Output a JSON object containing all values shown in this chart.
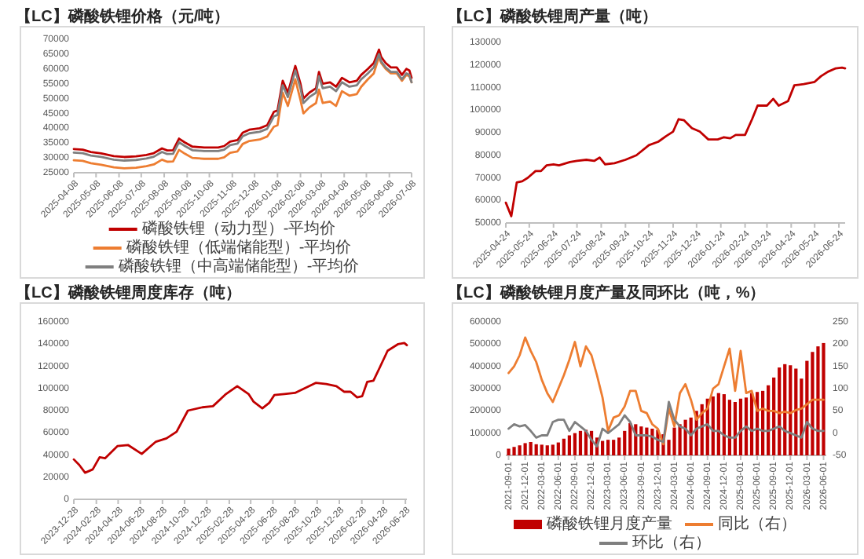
{
  "chart_data": [
    {
      "type": "line",
      "title": "【LC】磷酸铁锂价格（元/吨）",
      "legend": "bottom",
      "x": [
        "2025-04-08",
        "2025-04-20",
        "2025-05-01",
        "2025-05-15",
        "2025-06-01",
        "2025-06-15",
        "2025-07-01",
        "2025-07-15",
        "2025-07-25",
        "2025-08-05",
        "2025-08-12",
        "2025-08-20",
        "2025-08-28",
        "2025-09-05",
        "2025-09-15",
        "2025-10-01",
        "2025-10-20",
        "2025-10-28",
        "2025-11-05",
        "2025-11-15",
        "2025-11-22",
        "2025-12-01",
        "2025-12-15",
        "2025-12-25",
        "2026-01-03",
        "2026-01-08",
        "2026-01-15",
        "2026-01-22",
        "2026-02-01",
        "2026-02-08",
        "2026-02-12",
        "2026-02-20",
        "2026-03-01",
        "2026-03-05",
        "2026-03-10",
        "2026-03-20",
        "2026-03-28",
        "2026-04-05",
        "2026-04-15",
        "2026-04-25",
        "2026-05-01",
        "2026-05-10",
        "2026-05-18",
        "2026-05-25",
        "2026-05-28",
        "2026-06-03",
        "2026-06-10",
        "2026-06-18",
        "2026-06-25",
        "2026-07-01",
        "2026-07-05",
        "2026-07-08"
      ],
      "series": [
        {
          "name": "磷酸铁锂（动力型）-平均价",
          "color": "#c00000",
          "values": [
            33000,
            32800,
            32000,
            31500,
            30600,
            30300,
            30500,
            31000,
            31600,
            33200,
            32500,
            32600,
            36500,
            35200,
            33800,
            33500,
            33500,
            34000,
            35500,
            36000,
            38500,
            39500,
            40000,
            41000,
            45500,
            46000,
            56000,
            52000,
            61000,
            55000,
            50000,
            52000,
            53500,
            59000,
            55000,
            55500,
            54000,
            57000,
            55500,
            56000,
            58000,
            60000,
            62000,
            66500,
            64000,
            62000,
            60500,
            60500,
            58000,
            60000,
            59500,
            57000
          ]
        },
        {
          "name": "磷酸铁锂（低端储能型）-平均价",
          "color": "#ed7d31",
          "values": [
            29200,
            29000,
            28200,
            27700,
            26800,
            26500,
            26700,
            27200,
            27800,
            29400,
            28700,
            28800,
            32700,
            31400,
            30000,
            29700,
            29700,
            30200,
            31700,
            32200,
            34700,
            35700,
            36200,
            37200,
            40500,
            41000,
            52000,
            47500,
            56500,
            49500,
            45000,
            47000,
            48500,
            53000,
            48500,
            49000,
            47500,
            52500,
            51000,
            51500,
            54000,
            56500,
            58500,
            64000,
            62000,
            60000,
            58500,
            58500,
            56000,
            58000,
            57500,
            55500
          ]
        },
        {
          "name": "磷酸铁锂（中高端储能型）-平均价",
          "color": "#7f7f7f",
          "values": [
            31800,
            31600,
            30800,
            30300,
            29400,
            29100,
            29300,
            29800,
            30400,
            32000,
            31300,
            31400,
            35300,
            34000,
            32600,
            32300,
            32300,
            32800,
            34300,
            34800,
            37300,
            38300,
            38800,
            39800,
            44000,
            44500,
            54500,
            50500,
            59500,
            53500,
            48500,
            50500,
            52000,
            57500,
            53500,
            54000,
            52500,
            55500,
            54000,
            54500,
            56500,
            58500,
            60500,
            65000,
            62500,
            60500,
            59000,
            59000,
            56500,
            58500,
            58000,
            55500
          ]
        }
      ],
      "xlim": [
        "2025-04-08",
        "2026-07-08"
      ],
      "xticks": [
        "2025-04-08",
        "2025-05-08",
        "2025-06-08",
        "2025-07-08",
        "2025-08-08",
        "2025-09-08",
        "2025-10-08",
        "2025-11-08",
        "2025-12-08",
        "2026-01-08",
        "2026-02-08",
        "2026-03-08",
        "2026-04-08",
        "2026-05-08",
        "2026-06-08",
        "2026-07-08"
      ],
      "ylim": [
        25000,
        70000
      ],
      "yticks": [
        25000,
        30000,
        35000,
        40000,
        45000,
        50000,
        55000,
        60000,
        65000,
        70000
      ]
    },
    {
      "type": "line",
      "title": "【LC】磷酸铁锂周产量（吨）",
      "x": [
        "2025-04-24",
        "2025-05-01",
        "2025-05-08",
        "2025-05-15",
        "2025-05-22",
        "2025-06-01",
        "2025-06-08",
        "2025-06-15",
        "2025-06-24",
        "2025-07-01",
        "2025-07-15",
        "2025-07-24",
        "2025-08-05",
        "2025-08-15",
        "2025-08-22",
        "2025-08-29",
        "2025-09-10",
        "2025-09-24",
        "2025-10-08",
        "2025-10-24",
        "2025-11-05",
        "2025-11-15",
        "2025-11-24",
        "2025-12-01",
        "2025-12-08",
        "2025-12-18",
        "2025-12-28",
        "2026-01-08",
        "2026-01-20",
        "2026-01-28",
        "2026-02-05",
        "2026-02-12",
        "2026-02-24",
        "2026-03-05",
        "2026-03-12",
        "2026-03-24",
        "2026-04-01",
        "2026-04-08",
        "2026-04-20",
        "2026-04-28",
        "2026-05-10",
        "2026-05-24",
        "2026-06-01",
        "2026-06-10",
        "2026-06-20",
        "2026-06-28",
        "2026-07-02"
      ],
      "series": [
        {
          "color": "#c00000",
          "values": [
            59000,
            53000,
            68000,
            68500,
            70000,
            73000,
            73000,
            75500,
            76000,
            75500,
            77000,
            77500,
            78000,
            77500,
            79000,
            76000,
            76500,
            78000,
            80000,
            84500,
            86000,
            88500,
            90500,
            96000,
            95500,
            92000,
            90500,
            87000,
            87000,
            88000,
            87500,
            89000,
            89000,
            96000,
            102000,
            102000,
            105000,
            102000,
            104000,
            111000,
            111500,
            112500,
            115000,
            117000,
            118500,
            118800,
            118500
          ]
        }
      ],
      "xlim": [
        "2025-04-24",
        "2026-07-02"
      ],
      "xticks": [
        "2025-04-24",
        "2025-05-24",
        "2025-06-24",
        "2025-07-24",
        "2025-08-24",
        "2025-09-24",
        "2025-10-24",
        "2025-11-24",
        "2025-12-24",
        "2026-01-24",
        "2026-02-24",
        "2026-03-24",
        "2026-04-24",
        "2026-05-24",
        "2026-06-24"
      ],
      "ylim": [
        50000,
        130000
      ],
      "yticks": [
        50000,
        60000,
        70000,
        80000,
        90000,
        100000,
        110000,
        120000,
        130000
      ]
    },
    {
      "type": "line",
      "title": "【LC】磷酸铁锂周度库存（吨）",
      "x": [
        "2023-12-28",
        "2024-01-12",
        "2024-01-28",
        "2024-02-18",
        "2024-03-08",
        "2024-03-23",
        "2024-04-26",
        "2024-05-25",
        "2024-07-02",
        "2024-08-10",
        "2024-09-08",
        "2024-10-06",
        "2024-11-06",
        "2024-12-16",
        "2025-01-14",
        "2025-02-19",
        "2025-03-22",
        "2025-04-22",
        "2025-05-06",
        "2025-05-30",
        "2025-06-18",
        "2025-07-02",
        "2025-07-30",
        "2025-08-28",
        "2025-10-24",
        "2025-11-22",
        "2025-12-20",
        "2026-01-10",
        "2026-01-28",
        "2026-02-15",
        "2026-03-01",
        "2026-03-15",
        "2026-04-01",
        "2026-04-20",
        "2026-05-10",
        "2026-06-08",
        "2026-06-25",
        "2026-07-02"
      ],
      "series": [
        {
          "color": "#c00000",
          "values": [
            36000,
            31000,
            24000,
            27000,
            38000,
            37000,
            48000,
            49000,
            41000,
            52000,
            55000,
            61000,
            80000,
            83000,
            84000,
            95000,
            102000,
            95000,
            88000,
            82000,
            87000,
            94000,
            95000,
            96000,
            105000,
            104000,
            102000,
            97000,
            97000,
            92000,
            93000,
            106000,
            107000,
            120000,
            134000,
            140000,
            141000,
            139000
          ]
        }
      ],
      "xlim": [
        "2023-12-28",
        "2026-07-02"
      ],
      "xticks": [
        "2023-12-28",
        "2024-02-28",
        "2024-04-28",
        "2024-06-28",
        "2024-08-28",
        "2024-10-28",
        "2024-12-28",
        "2025-02-28",
        "2025-04-28",
        "2025-06-28",
        "2025-08-28",
        "2025-10-28",
        "2025-12-28",
        "2026-02-28",
        "2026-04-28",
        "2026-06-28"
      ],
      "ylim": [
        0,
        160000
      ],
      "yticks": [
        0,
        20000,
        40000,
        60000,
        80000,
        100000,
        120000,
        140000,
        160000
      ]
    },
    {
      "type": "bar",
      "title": "【LC】磷酸铁锂月度产量及同环比（吨，%）",
      "legend": "bottom",
      "categories": [
        "2021-09-01",
        null,
        null,
        "2021-12-01",
        null,
        null,
        "2022-03-01",
        null,
        null,
        "2022-06-01",
        null,
        null,
        "2022-09-01",
        null,
        null,
        "2022-12-01",
        null,
        null,
        "2023-03-01",
        null,
        null,
        "2023-06-01",
        null,
        null,
        "2023-09-01",
        null,
        null,
        "2023-12-01",
        null,
        null,
        "2024-03-01",
        null,
        null,
        "2024-06-01",
        null,
        null,
        "2024-09-01",
        null,
        null,
        "2024-12-01",
        null,
        null,
        "2025-03-01",
        null,
        null,
        "2025-06-01",
        null,
        null,
        "2025-09-01",
        null,
        null,
        "2025-12-01",
        null,
        null,
        "2026-03-01",
        null,
        null,
        "2026-06-01"
      ],
      "series": [
        {
          "name": "磷酸铁锂月度产量",
          "color": "#c00000",
          "values": [
            30000,
            38000,
            45000,
            55000,
            60000,
            50000,
            48000,
            45000,
            48000,
            58000,
            75000,
            90000,
            100000,
            110000,
            115000,
            110000,
            80000,
            65000,
            70000,
            70000,
            80000,
            110000,
            145000,
            140000,
            130000,
            125000,
            120000,
            115000,
            95000,
            70000,
            125000,
            140000,
            160000,
            170000,
            200000,
            230000,
            255000,
            265000,
            280000,
            275000,
            250000,
            240000,
            255000,
            260000,
            280000,
            285000,
            290000,
            315000,
            350000,
            395000,
            410000,
            405000,
            390000,
            345000,
            425000,
            465000,
            490000,
            505000
          ]
        },
        {
          "name": "同比（右）",
          "type": "line",
          "axis": "y2",
          "color": "#ed7d31",
          "values": [
            135,
            150,
            175,
            215,
            185,
            160,
            120,
            90,
            70,
            100,
            130,
            165,
            205,
            150,
            195,
            175,
            130,
            80,
            5,
            35,
            40,
            60,
            95,
            95,
            50,
            45,
            20,
            10,
            -25,
            55,
            15,
            90,
            110,
            75,
            30,
            45,
            55,
            100,
            110,
            150,
            190,
            95,
            185,
            90,
            95,
            50,
            55,
            50,
            50,
            45,
            48,
            45,
            52,
            55,
            65,
            75,
            75,
            75
          ]
        },
        {
          "name": "环比（右）",
          "type": "line",
          "axis": "y2",
          "color": "#7f7f7f",
          "values": [
            10,
            20,
            15,
            18,
            5,
            -10,
            -5,
            -5,
            25,
            30,
            30,
            5,
            25,
            15,
            5,
            -15,
            -30,
            10,
            0,
            10,
            20,
            40,
            25,
            -5,
            -5,
            -5,
            -8,
            -15,
            -20,
            70,
            30,
            15,
            10,
            -5,
            10,
            15,
            20,
            5,
            5,
            -5,
            -10,
            -10,
            5,
            15,
            5,
            10,
            5,
            5,
            10,
            15,
            5,
            0,
            -5,
            -10,
            25,
            10,
            5,
            5
          ]
        }
      ],
      "ylim": [
        0,
        600000
      ],
      "yticks": [
        0,
        100000,
        200000,
        300000,
        400000,
        500000,
        600000
      ],
      "y2lim": [
        -50,
        250
      ],
      "y2ticks": [
        -50,
        0,
        50,
        100,
        150,
        200,
        250
      ]
    }
  ]
}
